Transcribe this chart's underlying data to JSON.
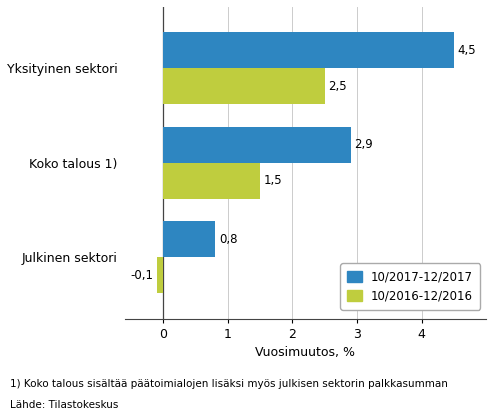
{
  "categories": [
    "Julkinen sektori",
    "Koko talous 1)",
    "Yksityinen sektori"
  ],
  "series": [
    {
      "label": "10/2017-12/2017",
      "values": [
        0.8,
        2.9,
        4.5
      ],
      "color": "#2E86C1"
    },
    {
      "label": "10/2016-12/2016",
      "values": [
        -0.1,
        1.5,
        2.5
      ],
      "color": "#BFCD3E"
    }
  ],
  "xlabel": "Vuosimuutos, %",
  "xlim": [
    -0.6,
    5.0
  ],
  "xticks": [
    0,
    1,
    2,
    3,
    4
  ],
  "footnote1": "1) Koko talous sisältää päätoimialojen lisäksi myös julkisen sektorin palkkasumman",
  "footnote2": "Lähde: Tilastokeskus",
  "bar_height": 0.38,
  "value_fontsize": 8.5,
  "label_fontsize": 9,
  "tick_fontsize": 9,
  "legend_fontsize": 8.5,
  "background_color": "#ffffff",
  "grid_color": "#cccccc"
}
